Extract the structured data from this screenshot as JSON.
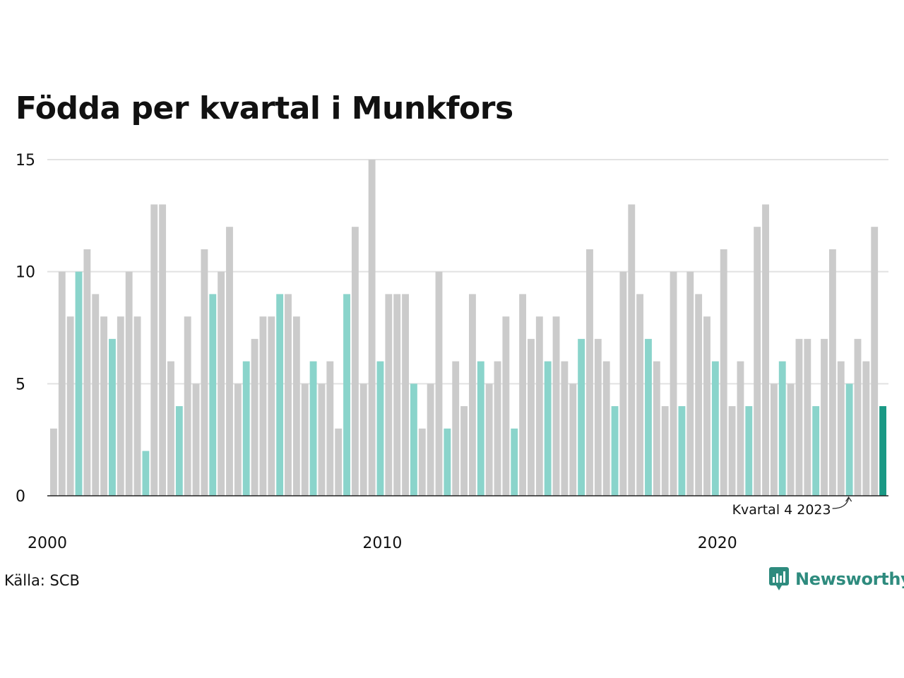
{
  "title": "Födda per kvartal i Munkfors",
  "source": "Källa: SCB",
  "brand": "Newsworthy",
  "colors": {
    "bar_default": "#cbcbcb",
    "bar_q4": "#8ad4cb",
    "bar_latest": "#1a9985",
    "gridline": "#e2e2e2",
    "axis": "#222222",
    "brand": "#2e8b7e"
  },
  "chart_data": {
    "type": "bar",
    "title": "Födda per kvartal i Munkfors",
    "xlabel": "",
    "ylabel": "",
    "ylim": [
      0,
      15
    ],
    "yticks": [
      0,
      5,
      10,
      15
    ],
    "xtick_labels": [
      {
        "label": "2000",
        "year": 2000
      },
      {
        "label": "2010",
        "year": 2010
      },
      {
        "label": "2020",
        "year": 2020
      }
    ],
    "start_year": 2000,
    "start_quarter": 1,
    "highlight_quarter": 4,
    "grid": true,
    "annotation": {
      "text": "Kvartal 4 2023",
      "year": 2023,
      "quarter": 4
    },
    "values": [
      3,
      10,
      8,
      10,
      11,
      9,
      8,
      7,
      8,
      10,
      8,
      2,
      13,
      13,
      6,
      4,
      8,
      5,
      11,
      9,
      10,
      12,
      5,
      6,
      7,
      8,
      8,
      9,
      9,
      8,
      5,
      6,
      5,
      6,
      3,
      9,
      12,
      5,
      15,
      6,
      9,
      9,
      9,
      5,
      3,
      5,
      10,
      3,
      6,
      4,
      9,
      6,
      5,
      6,
      8,
      3,
      9,
      7,
      8,
      6,
      8,
      6,
      5,
      7,
      11,
      7,
      6,
      4,
      10,
      13,
      9,
      7,
      6,
      4,
      10,
      4,
      10,
      9,
      8,
      6,
      11,
      4,
      6,
      4,
      12,
      13,
      5,
      6,
      5,
      7,
      7,
      4,
      7,
      11,
      6,
      5,
      7,
      6,
      12,
      4
    ]
  }
}
